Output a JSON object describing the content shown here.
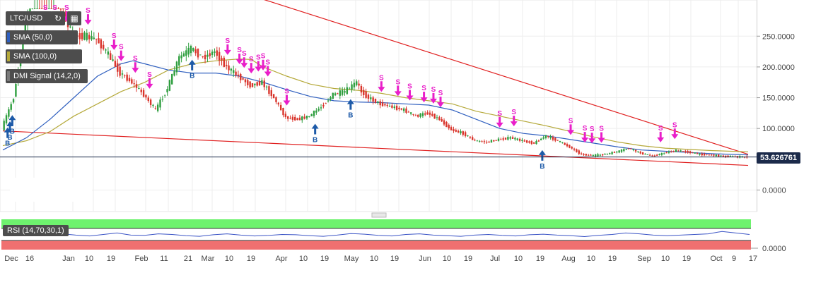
{
  "chart_data": [
    {
      "type": "line",
      "symbol": "LTC/USD",
      "indicators": [
        "SMA (50,0)",
        "SMA (100,0)",
        "DMI Signal (14,2,0)"
      ],
      "y_ticks": [
        "250.0000",
        "200.0000",
        "150.0000",
        "100.0000",
        "0.0000"
      ],
      "y_tick_values": [
        250,
        200,
        150,
        100,
        0
      ],
      "ylim": [
        -35,
        295
      ],
      "x_tick_labels": [
        "Dec",
        "16",
        "Jan",
        "10",
        "19",
        "Feb",
        "11",
        "21",
        "Mar",
        "10",
        "19",
        "Apr",
        "10",
        "19",
        "May",
        "10",
        "19",
        "Jun",
        "10",
        "19",
        "Jul",
        "10",
        "19",
        "Aug",
        "10",
        "19",
        "Sep",
        "10",
        "19",
        "Oct",
        "9",
        "17"
      ],
      "last_price": "53.626761",
      "last_price_value": 53.63,
      "price": [
        {
          "t": 0,
          "v": 100
        },
        {
          "t": 5,
          "v": 150
        },
        {
          "t": 10,
          "v": 270
        },
        {
          "t": 15,
          "v": 360
        },
        {
          "t": 20,
          "v": 330
        },
        {
          "t": 25,
          "v": 300
        },
        {
          "t": 30,
          "v": 250
        },
        {
          "t": 35,
          "v": 250
        },
        {
          "t": 40,
          "v": 245
        },
        {
          "t": 45,
          "v": 220
        },
        {
          "t": 50,
          "v": 190
        },
        {
          "t": 55,
          "v": 175
        },
        {
          "t": 60,
          "v": 155
        },
        {
          "t": 65,
          "v": 130
        },
        {
          "t": 70,
          "v": 165
        },
        {
          "t": 75,
          "v": 215
        },
        {
          "t": 80,
          "v": 230
        },
        {
          "t": 85,
          "v": 215
        },
        {
          "t": 90,
          "v": 225
        },
        {
          "t": 95,
          "v": 200
        },
        {
          "t": 100,
          "v": 185
        },
        {
          "t": 105,
          "v": 170
        },
        {
          "t": 110,
          "v": 175
        },
        {
          "t": 115,
          "v": 150
        },
        {
          "t": 120,
          "v": 118
        },
        {
          "t": 125,
          "v": 115
        },
        {
          "t": 130,
          "v": 120
        },
        {
          "t": 135,
          "v": 135
        },
        {
          "t": 140,
          "v": 155
        },
        {
          "t": 145,
          "v": 160
        },
        {
          "t": 150,
          "v": 175
        },
        {
          "t": 152,
          "v": 160
        },
        {
          "t": 155,
          "v": 150
        },
        {
          "t": 160,
          "v": 140
        },
        {
          "t": 165,
          "v": 135
        },
        {
          "t": 170,
          "v": 130
        },
        {
          "t": 175,
          "v": 120
        },
        {
          "t": 180,
          "v": 125
        },
        {
          "t": 185,
          "v": 115
        },
        {
          "t": 190,
          "v": 98
        },
        {
          "t": 195,
          "v": 92
        },
        {
          "t": 200,
          "v": 80
        },
        {
          "t": 205,
          "v": 78
        },
        {
          "t": 210,
          "v": 82
        },
        {
          "t": 215,
          "v": 85
        },
        {
          "t": 220,
          "v": 80
        },
        {
          "t": 225,
          "v": 76
        },
        {
          "t": 230,
          "v": 88
        },
        {
          "t": 235,
          "v": 80
        },
        {
          "t": 240,
          "v": 70
        },
        {
          "t": 245,
          "v": 58
        },
        {
          "t": 250,
          "v": 56
        },
        {
          "t": 255,
          "v": 58
        },
        {
          "t": 260,
          "v": 62
        },
        {
          "t": 265,
          "v": 68
        },
        {
          "t": 270,
          "v": 60
        },
        {
          "t": 275,
          "v": 55
        },
        {
          "t": 280,
          "v": 60
        },
        {
          "t": 285,
          "v": 64
        },
        {
          "t": 290,
          "v": 62
        },
        {
          "t": 295,
          "v": 58
        },
        {
          "t": 300,
          "v": 57
        },
        {
          "t": 305,
          "v": 55
        },
        {
          "t": 310,
          "v": 54
        },
        {
          "t": 315,
          "v": 53.63
        }
      ],
      "sma50": [
        {
          "t": 0,
          "v": 65
        },
        {
          "t": 10,
          "v": 85
        },
        {
          "t": 20,
          "v": 115
        },
        {
          "t": 30,
          "v": 150
        },
        {
          "t": 40,
          "v": 185
        },
        {
          "t": 50,
          "v": 205
        },
        {
          "t": 55,
          "v": 210
        },
        {
          "t": 60,
          "v": 205
        },
        {
          "t": 70,
          "v": 195
        },
        {
          "t": 80,
          "v": 190
        },
        {
          "t": 90,
          "v": 190
        },
        {
          "t": 100,
          "v": 185
        },
        {
          "t": 110,
          "v": 175
        },
        {
          "t": 120,
          "v": 163
        },
        {
          "t": 130,
          "v": 152
        },
        {
          "t": 140,
          "v": 145
        },
        {
          "t": 150,
          "v": 143
        },
        {
          "t": 160,
          "v": 142
        },
        {
          "t": 170,
          "v": 140
        },
        {
          "t": 180,
          "v": 138
        },
        {
          "t": 190,
          "v": 130
        },
        {
          "t": 200,
          "v": 115
        },
        {
          "t": 210,
          "v": 100
        },
        {
          "t": 220,
          "v": 92
        },
        {
          "t": 230,
          "v": 88
        },
        {
          "t": 240,
          "v": 82
        },
        {
          "t": 250,
          "v": 76
        },
        {
          "t": 260,
          "v": 70
        },
        {
          "t": 270,
          "v": 65
        },
        {
          "t": 280,
          "v": 63
        },
        {
          "t": 290,
          "v": 61
        },
        {
          "t": 300,
          "v": 59
        },
        {
          "t": 315,
          "v": 57
        }
      ],
      "sma100": [
        {
          "t": 0,
          "v": 72
        },
        {
          "t": 10,
          "v": 80
        },
        {
          "t": 20,
          "v": 95
        },
        {
          "t": 30,
          "v": 120
        },
        {
          "t": 40,
          "v": 140
        },
        {
          "t": 50,
          "v": 160
        },
        {
          "t": 60,
          "v": 175
        },
        {
          "t": 70,
          "v": 195
        },
        {
          "t": 80,
          "v": 205
        },
        {
          "t": 90,
          "v": 210
        },
        {
          "t": 100,
          "v": 213
        },
        {
          "t": 105,
          "v": 212
        },
        {
          "t": 110,
          "v": 200
        },
        {
          "t": 120,
          "v": 185
        },
        {
          "t": 130,
          "v": 172
        },
        {
          "t": 140,
          "v": 165
        },
        {
          "t": 150,
          "v": 162
        },
        {
          "t": 160,
          "v": 157
        },
        {
          "t": 170,
          "v": 150
        },
        {
          "t": 180,
          "v": 145
        },
        {
          "t": 190,
          "v": 140
        },
        {
          "t": 200,
          "v": 128
        },
        {
          "t": 210,
          "v": 120
        },
        {
          "t": 220,
          "v": 112
        },
        {
          "t": 230,
          "v": 104
        },
        {
          "t": 240,
          "v": 95
        },
        {
          "t": 250,
          "v": 86
        },
        {
          "t": 260,
          "v": 78
        },
        {
          "t": 270,
          "v": 72
        },
        {
          "t": 280,
          "v": 68
        },
        {
          "t": 290,
          "v": 66
        },
        {
          "t": 300,
          "v": 64
        },
        {
          "t": 315,
          "v": 62
        }
      ],
      "trendline_upper": [
        {
          "t": 0,
          "v": 445
        },
        {
          "t": 315,
          "v": 58
        }
      ],
      "trendline_lower": [
        {
          "t": 0,
          "v": 96
        },
        {
          "t": 315,
          "v": 40
        }
      ],
      "sell_signals_t": [
        18,
        22,
        27,
        36,
        47,
        50,
        56,
        62,
        95,
        100,
        102,
        105,
        108,
        110,
        112,
        120,
        160,
        167,
        172,
        178,
        182,
        185,
        210,
        216,
        240,
        246,
        249,
        253,
        278,
        284
      ],
      "buy_signals_t": [
        2,
        3,
        4,
        80,
        132,
        147,
        228
      ]
    },
    {
      "type": "line",
      "name": "RSI (14,70,30,1)",
      "y_ticks": [
        "0.0000"
      ],
      "ylim": [
        0,
        100
      ],
      "overbought": 70,
      "oversold": 30,
      "values": [
        62,
        58,
        55,
        50,
        52,
        48,
        45,
        50,
        55,
        48,
        47,
        52,
        50,
        46,
        44,
        49,
        52,
        48,
        45,
        47,
        50,
        49,
        46,
        44,
        48,
        53,
        51,
        47,
        45,
        50,
        52,
        48,
        46,
        44,
        48,
        50,
        47,
        45,
        49,
        51,
        48,
        46,
        43,
        47,
        50,
        55,
        52,
        48,
        46,
        48,
        50,
        52,
        60,
        55,
        50
      ]
    }
  ],
  "legend": {
    "symbol": "LTC/USD",
    "sma50": "SMA (50,0)",
    "sma100": "SMA (100,0)",
    "dmi": "DMI Signal (14,2,0)",
    "rsi": "RSI (14,70,30,1)"
  },
  "signal_labels": {
    "sell": "S",
    "buy": "B"
  },
  "colors": {
    "price_up": "#2e9e3e",
    "price_down": "#d9342b",
    "sma50": "#2f5fbf",
    "sma100": "#b5a93a",
    "trendline": "#e02020",
    "sell": "#e91ec9",
    "buy": "#1d5aa8",
    "rsi_line": "#3a53c5",
    "rsi_overbought": "#6ef26e",
    "rsi_oversold": "#f07070",
    "last_price_bg": "#1b2a4a"
  },
  "icons": {
    "refresh": "refresh-icon",
    "calendar": "calendar-icon"
  }
}
